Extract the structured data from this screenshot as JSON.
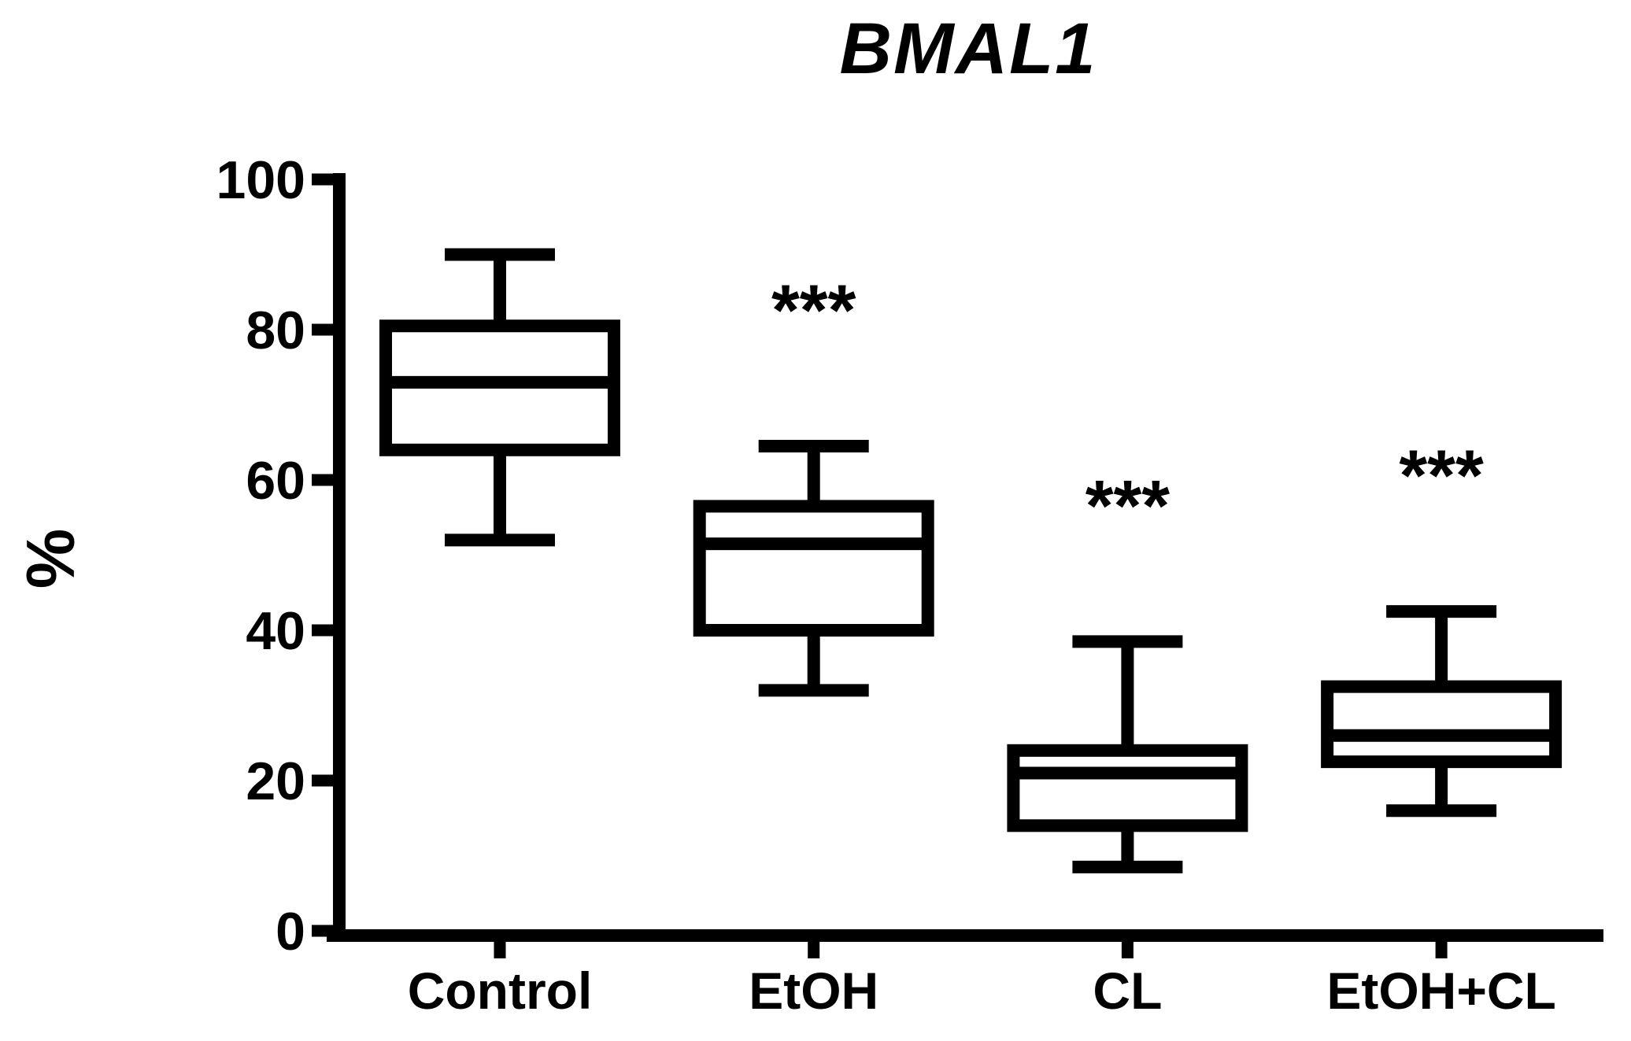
{
  "chart_data": {
    "type": "box",
    "title": "BMAL1",
    "ylabel": "%",
    "xlabel": "",
    "ylim": [
      0,
      100
    ],
    "yticks": [
      0,
      20,
      40,
      60,
      80,
      100
    ],
    "grid": false,
    "legend": "none",
    "categories": [
      "Control",
      "EtOH",
      "CL",
      "EtOH+CL"
    ],
    "series": [
      {
        "name": "Control",
        "min": 52,
        "q1": 64,
        "median": 73,
        "q3": 80.5,
        "max": 90,
        "significance": ""
      },
      {
        "name": "EtOH",
        "min": 32,
        "q1": 40,
        "median": 51.5,
        "q3": 56.5,
        "max": 64.5,
        "significance": "***"
      },
      {
        "name": "CL",
        "min": 8.5,
        "q1": 14,
        "median": 21,
        "q3": 24,
        "max": 38.5,
        "significance": "***"
      },
      {
        "name": "EtOH+CL",
        "min": 16,
        "q1": 22.5,
        "median": 26,
        "q3": 32.5,
        "max": 42.5,
        "significance": "***"
      }
    ],
    "colors": {
      "line": "#000000",
      "box_fill": "#ffffff",
      "background": "#ffffff"
    }
  }
}
